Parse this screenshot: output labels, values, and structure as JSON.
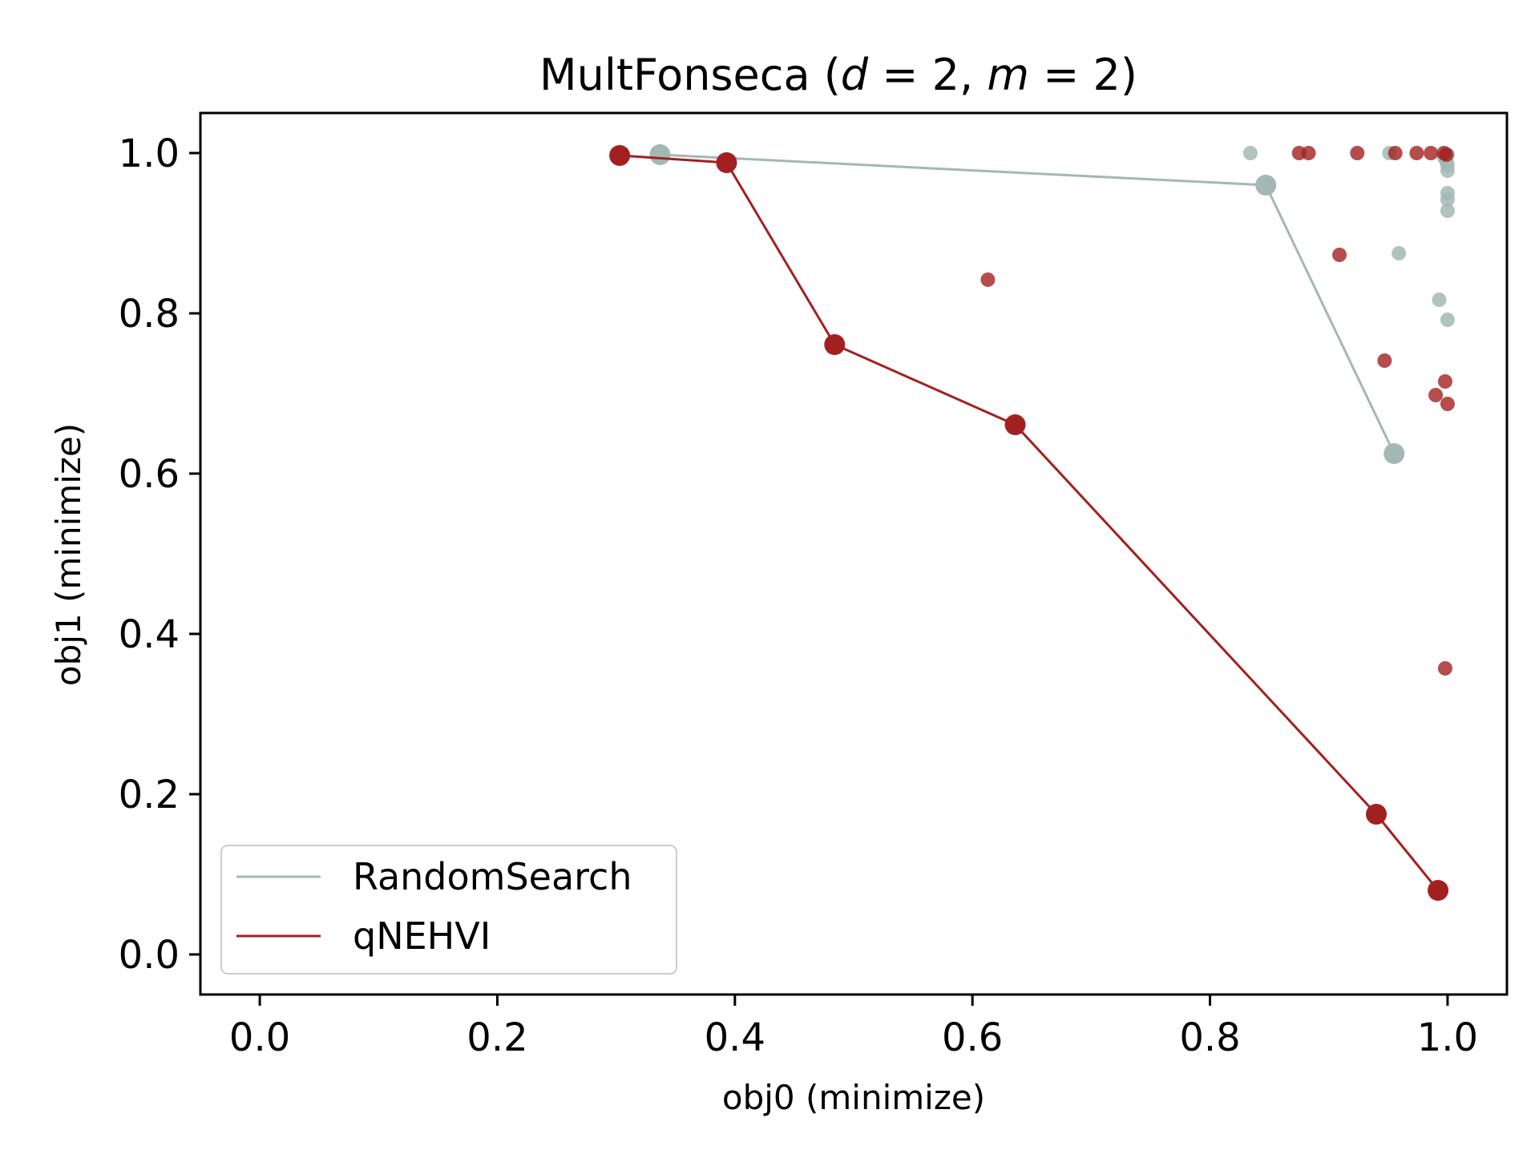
{
  "chart_data": {
    "type": "scatter",
    "title_main": "MultFonseca (",
    "title_d": "d",
    "title_eq1": " = 2, ",
    "title_m": "m",
    "title_eq2": " = 2)",
    "xlabel": "obj0 (minimize)",
    "ylabel": "obj1 (minimize)",
    "xlim": [
      -0.05,
      1.05
    ],
    "ylim": [
      -0.05,
      1.05
    ],
    "xticks": [
      "0.0",
      "0.2",
      "0.4",
      "0.6",
      "0.8",
      "1.0"
    ],
    "yticks": [
      "0.0",
      "0.2",
      "0.4",
      "0.6",
      "0.8",
      "1.0"
    ],
    "grid": false,
    "legend_position": "lower-left",
    "series": [
      {
        "name": "RandomSearch",
        "color": "#a3b8b4",
        "front": [
          [
            0.337,
            0.998
          ],
          [
            0.847,
            0.96
          ],
          [
            0.955,
            0.625
          ]
        ],
        "points": [
          [
            0.834,
            1.0
          ],
          [
            0.951,
            1.0
          ],
          [
            1.0,
            0.998
          ],
          [
            1.0,
            0.985
          ],
          [
            1.0,
            0.978
          ],
          [
            1.0,
            0.95
          ],
          [
            1.0,
            0.942
          ],
          [
            1.0,
            0.928
          ],
          [
            0.959,
            0.875
          ],
          [
            0.993,
            0.817
          ],
          [
            1.0,
            0.792
          ],
          [
            0.997,
            0.995
          ],
          [
            0.999,
            0.99
          ]
        ]
      },
      {
        "name": "qNEHVI",
        "color": "#a32020",
        "front": [
          [
            0.303,
            0.997
          ],
          [
            0.393,
            0.988
          ],
          [
            0.484,
            0.761
          ],
          [
            0.636,
            0.661
          ],
          [
            0.94,
            0.175
          ],
          [
            0.992,
            0.08
          ]
        ],
        "points": [
          [
            0.875,
            1.0
          ],
          [
            0.883,
            1.0
          ],
          [
            0.924,
            1.0
          ],
          [
            0.956,
            1.0
          ],
          [
            0.974,
            1.0
          ],
          [
            0.986,
            1.0
          ],
          [
            0.997,
            1.0
          ],
          [
            0.999,
            0.998
          ],
          [
            0.909,
            0.873
          ],
          [
            0.613,
            0.842
          ],
          [
            0.947,
            0.741
          ],
          [
            0.998,
            0.715
          ],
          [
            0.99,
            0.698
          ],
          [
            1.0,
            0.687
          ],
          [
            0.998,
            0.357
          ]
        ]
      }
    ]
  }
}
